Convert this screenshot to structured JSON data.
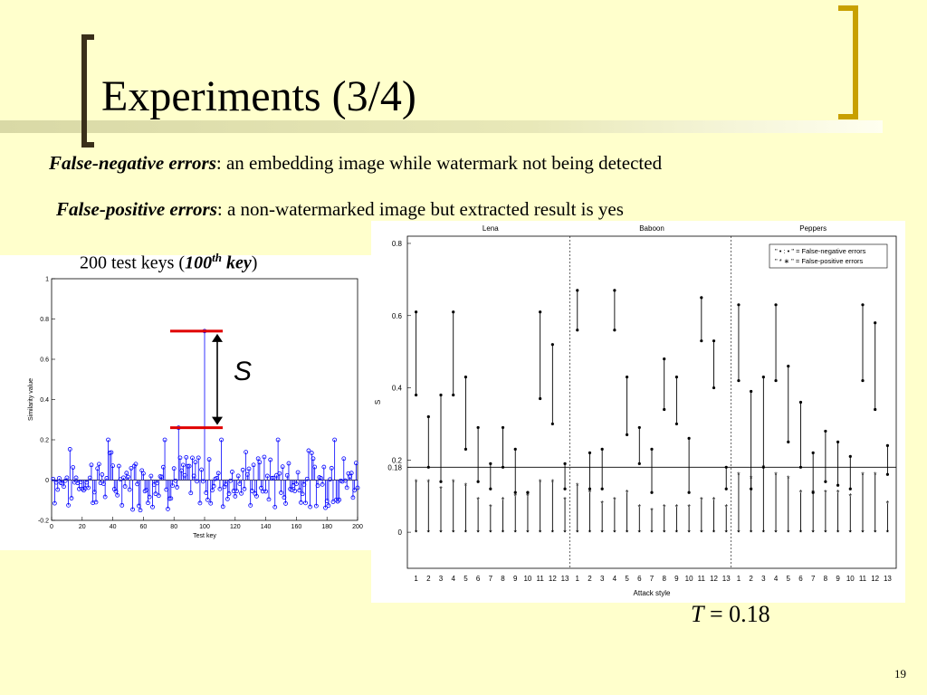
{
  "slide": {
    "title": "Experiments (3/4)",
    "fn_term": "False-negative errors",
    "fn_def": ": an embedding  image while watermark not being detected",
    "fp_term": "False-positive errors",
    "fp_def": ": a non-watermarked image but extracted result is yes",
    "keys_prefix": "200 test keys (",
    "keys_num": "100",
    "keys_sup": "th",
    "keys_word": " key",
    "keys_suffix": ")",
    "s_label": "S",
    "t_var": "T",
    "t_eq": " = 0.18",
    "page_number": "19"
  },
  "chart_data": [
    {
      "type": "stem",
      "xlabel": "Test key",
      "ylabel": "Similarity value",
      "xlim": [
        0,
        200
      ],
      "ylim": [
        -0.2,
        1
      ],
      "xticks": [
        "0",
        "20",
        "40",
        "60",
        "80",
        "100",
        "120",
        "140",
        "160",
        "180",
        "200"
      ],
      "yticks": [
        "-0.2",
        "0",
        "0.2",
        "0.4",
        "0.6",
        "0.8",
        "1"
      ],
      "highlight_key": 100,
      "highlight_value": 0.74,
      "second_peak_key": 83,
      "second_peak_value": 0.26,
      "series_color": "#0000ff"
    },
    {
      "type": "range-plot",
      "xlabel": "Attack style",
      "ylabel": "S",
      "ylim": [
        -0.1,
        0.82
      ],
      "yticks": [
        "0",
        "0.18",
        "0.2",
        "0.4",
        "0.6",
        "0.8"
      ],
      "threshold": 0.18,
      "groups": [
        "Lena",
        "Baboon",
        "Peppers"
      ],
      "xtick_labels": [
        "1",
        "2",
        "3",
        "4",
        "5",
        "6",
        "7",
        "8",
        "9",
        "10",
        "11",
        "12",
        "13"
      ],
      "legend": [
        "\" • : • \" = False-negative errors",
        "\" * ∗ \" = False-positive errors"
      ],
      "fn_ranges": [
        [
          0.38,
          0.61
        ],
        [
          0.18,
          0.32
        ],
        [
          0.14,
          0.38
        ],
        [
          0.38,
          0.61
        ],
        [
          0.23,
          0.43
        ],
        [
          0.14,
          0.29
        ],
        [
          0.12,
          0.19
        ],
        [
          0.18,
          0.29
        ],
        [
          0.11,
          0.23
        ],
        [
          0.11,
          0.11
        ],
        [
          0.37,
          0.61
        ],
        [
          0.3,
          0.52
        ],
        [
          0.12,
          0.19
        ],
        [
          0.56,
          0.67
        ],
        [
          0.12,
          0.22
        ],
        [
          0.12,
          0.23
        ],
        [
          0.56,
          0.67
        ],
        [
          0.27,
          0.43
        ],
        [
          0.19,
          0.29
        ],
        [
          0.11,
          0.23
        ],
        [
          0.34,
          0.48
        ],
        [
          0.3,
          0.43
        ],
        [
          0.11,
          0.26
        ],
        [
          0.53,
          0.65
        ],
        [
          0.4,
          0.53
        ],
        [
          0.12,
          0.18
        ],
        [
          0.42,
          0.63
        ],
        [
          0.12,
          0.39
        ],
        [
          0.18,
          0.43
        ],
        [
          0.42,
          0.63
        ],
        [
          0.25,
          0.46
        ],
        [
          0.18,
          0.36
        ],
        [
          0.11,
          0.22
        ],
        [
          0.14,
          0.28
        ],
        [
          0.13,
          0.25
        ],
        [
          0.12,
          0.21
        ],
        [
          0.42,
          0.63
        ],
        [
          0.34,
          0.58
        ],
        [
          0.16,
          0.24
        ]
      ],
      "fp_tops": [
        0.14,
        0.14,
        0.12,
        0.14,
        0.13,
        0.09,
        0.07,
        0.09,
        0.1,
        0.1,
        0.14,
        0.14,
        0.09,
        0.13,
        0.11,
        0.08,
        0.09,
        0.11,
        0.07,
        0.06,
        0.07,
        0.07,
        0.07,
        0.09,
        0.09,
        0.07,
        0.16,
        0.15,
        0.18,
        0.16,
        0.15,
        0.11,
        0.11,
        0.11,
        0.11,
        0.1,
        0.16,
        0.16,
        0.08
      ]
    }
  ]
}
